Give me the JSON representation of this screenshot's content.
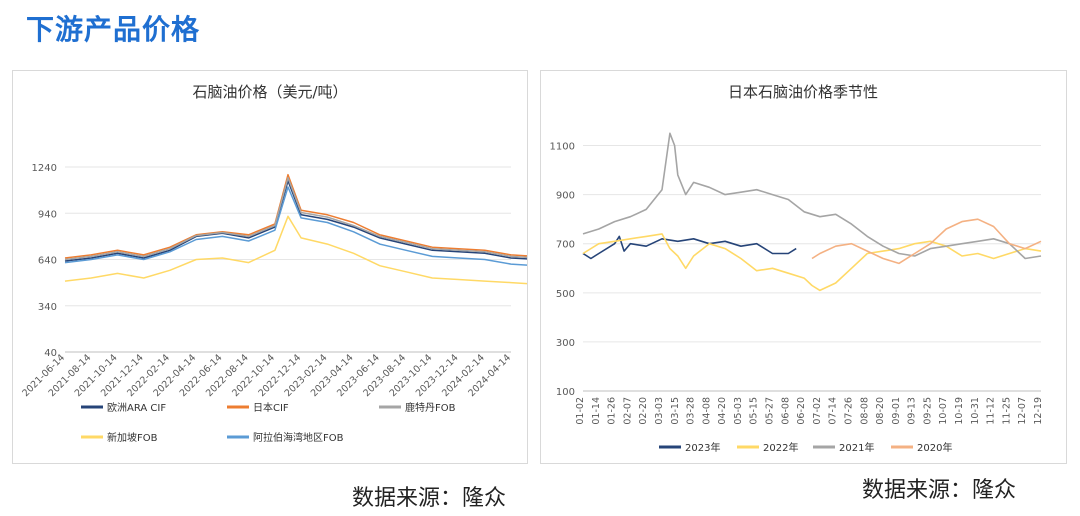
{
  "page": {
    "title": "下游产品价格"
  },
  "chart_data": [
    {
      "type": "line",
      "title": "石脑油价格（美元/吨）",
      "ylim": [
        40,
        1240
      ],
      "yticks": [
        40,
        340,
        640,
        940,
        1240
      ],
      "x_ticks": [
        "2021-06-14",
        "2021-08-14",
        "2021-10-14",
        "2021-12-14",
        "2022-02-14",
        "2022-04-14",
        "2022-06-14",
        "2022-08-14",
        "2022-10-14",
        "2022-12-14",
        "2023-02-14",
        "2023-04-14",
        "2023-06-14",
        "2023-08-14",
        "2023-10-14",
        "2023-12-14",
        "2024-02-14",
        "2024-04-14"
      ],
      "series": [
        {
          "name": "欧洲ARA CIF",
          "color": "#264478",
          "x": [
            0,
            1,
            2,
            3,
            4,
            5,
            6,
            7,
            8,
            8.5,
            9,
            10,
            11,
            12,
            13,
            14,
            15,
            16,
            17,
            18,
            19,
            20,
            20.5,
            21,
            22,
            23,
            24,
            25,
            26,
            27,
            28,
            29,
            30,
            31,
            32,
            33,
            34,
            35,
            36
          ],
          "values": [
            630,
            650,
            680,
            650,
            700,
            790,
            810,
            780,
            850,
            1150,
            930,
            900,
            850,
            780,
            740,
            700,
            690,
            680,
            650,
            640,
            700,
            660,
            700,
            630,
            620,
            520,
            560,
            600,
            630,
            640,
            650,
            640,
            650,
            630,
            680,
            650,
            670,
            660,
            660
          ]
        },
        {
          "name": "日本CIF",
          "color": "#ed7d31",
          "x": [
            0,
            1,
            2,
            3,
            4,
            5,
            6,
            7,
            8,
            8.5,
            9,
            10,
            11,
            12,
            13,
            14,
            15,
            16,
            17,
            18,
            19,
            20,
            20.5,
            21,
            22,
            23,
            24,
            25,
            26,
            27,
            28,
            29,
            30,
            31,
            32,
            33,
            34,
            35,
            36
          ],
          "values": [
            650,
            670,
            700,
            670,
            720,
            800,
            820,
            800,
            870,
            1190,
            960,
            930,
            880,
            800,
            760,
            720,
            710,
            700,
            670,
            660,
            720,
            690,
            730,
            660,
            650,
            560,
            590,
            620,
            650,
            660,
            670,
            660,
            670,
            660,
            720,
            700,
            710,
            700,
            680
          ]
        },
        {
          "name": "鹿特丹FOB",
          "color": "#a5a5a5",
          "x": [
            0,
            1,
            2,
            3,
            4,
            5,
            6,
            7,
            8,
            8.5,
            9,
            10,
            11,
            12,
            13,
            14,
            15,
            16,
            17,
            18,
            19,
            20,
            20.5,
            21,
            22,
            23,
            24,
            25,
            26,
            27,
            28,
            29,
            30,
            31,
            32,
            33,
            34,
            35,
            36
          ],
          "values": [
            640,
            660,
            690,
            660,
            710,
            795,
            815,
            790,
            860,
            1170,
            945,
            915,
            860,
            790,
            750,
            710,
            700,
            690,
            660,
            650,
            715,
            670,
            720,
            640,
            630,
            540,
            570,
            610,
            640,
            650,
            660,
            650,
            660,
            650,
            700,
            680,
            690,
            680,
            670
          ]
        },
        {
          "name": "新加坡FOB",
          "color": "#ffd966",
          "x": [
            0,
            1,
            2,
            3,
            4,
            5,
            6,
            7,
            8,
            8.5,
            9,
            10,
            11,
            12,
            13,
            14,
            15,
            16,
            17,
            18,
            19,
            20,
            20.5,
            21,
            22,
            23,
            24,
            25,
            26,
            27,
            28,
            29,
            30,
            31,
            32,
            33,
            34,
            35,
            36
          ],
          "values": [
            500,
            520,
            550,
            520,
            570,
            640,
            650,
            620,
            700,
            920,
            780,
            740,
            680,
            600,
            560,
            520,
            510,
            500,
            490,
            480,
            530,
            500,
            540,
            470,
            460,
            380,
            420,
            460,
            480,
            500,
            510,
            500,
            510,
            500,
            550,
            530,
            540,
            540,
            510
          ]
        },
        {
          "name": "阿拉伯海湾地区FOB",
          "color": "#5b9bd5",
          "x": [
            0,
            1,
            2,
            3,
            4,
            5,
            6,
            7,
            8,
            8.5,
            9,
            10,
            11,
            12,
            13,
            14,
            15,
            16,
            17,
            18,
            19,
            20,
            20.5,
            21,
            22,
            23,
            24,
            25,
            26,
            27,
            28,
            29,
            30,
            31,
            32,
            33,
            34,
            35,
            36
          ],
          "values": [
            620,
            640,
            670,
            640,
            690,
            770,
            790,
            760,
            830,
            1110,
            910,
            880,
            820,
            740,
            700,
            660,
            650,
            640,
            610,
            600,
            660,
            620,
            660,
            590,
            580,
            480,
            530,
            570,
            590,
            600,
            610,
            600,
            610,
            600,
            640,
            620,
            630,
            620,
            600
          ]
        }
      ]
    },
    {
      "type": "line",
      "title": "日本石脑油价格季节性",
      "ylim": [
        100,
        1200
      ],
      "yticks": [
        100,
        300,
        500,
        700,
        900,
        1100
      ],
      "x_ticks": [
        "01-02",
        "01-14",
        "01-26",
        "02-07",
        "02-20",
        "03-03",
        "03-15",
        "03-28",
        "04-08",
        "04-20",
        "05-03",
        "05-15",
        "05-27",
        "06-08",
        "06-20",
        "07-02",
        "07-14",
        "07-26",
        "08-08",
        "08-20",
        "09-01",
        "09-13",
        "09-25",
        "10-07",
        "10-19",
        "10-31",
        "11-12",
        "11-25",
        "12-07",
        "12-19"
      ],
      "series": [
        {
          "name": "2023年",
          "color": "#264478",
          "x": [
            0,
            0.5,
            1,
            2,
            2.3,
            2.6,
            3,
            4,
            5,
            6,
            7,
            8,
            9,
            10,
            11,
            12,
            13,
            13.5
          ],
          "values": [
            660,
            640,
            660,
            700,
            730,
            670,
            700,
            690,
            720,
            710,
            720,
            700,
            710,
            690,
            700,
            660,
            660,
            680
          ]
        },
        {
          "name": "2022年",
          "color": "#ffd966",
          "x": [
            0,
            1,
            2,
            3,
            4,
            5,
            5.5,
            6,
            6.5,
            7,
            8,
            9,
            10,
            11,
            12,
            13,
            14,
            14.5,
            15,
            16,
            17,
            18,
            19,
            20,
            21,
            22,
            23,
            24,
            25,
            26,
            27,
            28,
            29
          ],
          "values": [
            660,
            700,
            710,
            720,
            730,
            740,
            680,
            650,
            600,
            650,
            700,
            680,
            640,
            590,
            600,
            580,
            560,
            530,
            510,
            540,
            600,
            660,
            670,
            680,
            700,
            710,
            690,
            650,
            660,
            640,
            660,
            680,
            670
          ]
        },
        {
          "name": "2021年",
          "color": "#a5a5a5",
          "x": [
            0,
            1,
            2,
            3,
            4,
            5,
            5.5,
            5.8,
            6,
            6.5,
            7,
            8,
            9,
            10,
            11,
            12,
            13,
            14,
            15,
            16,
            17,
            18,
            19,
            20,
            21,
            22,
            23,
            24,
            25,
            26,
            27,
            28,
            29
          ],
          "values": [
            740,
            760,
            790,
            810,
            840,
            920,
            1150,
            1100,
            980,
            900,
            950,
            930,
            900,
            910,
            920,
            900,
            880,
            830,
            810,
            820,
            780,
            730,
            690,
            660,
            650,
            680,
            690,
            700,
            710,
            720,
            700,
            640,
            650
          ]
        },
        {
          "name": "2020年",
          "color": "#f4b183",
          "x": [
            14.5,
            15,
            16,
            17,
            18,
            19,
            20,
            21,
            22,
            23,
            24,
            25,
            26,
            27,
            28,
            29
          ],
          "values": [
            640,
            660,
            690,
            700,
            670,
            640,
            620,
            660,
            700,
            760,
            790,
            800,
            770,
            700,
            680,
            710
          ]
        }
      ]
    }
  ],
  "source": {
    "left": "数据来源：隆众",
    "right": "数据来源：隆众"
  }
}
